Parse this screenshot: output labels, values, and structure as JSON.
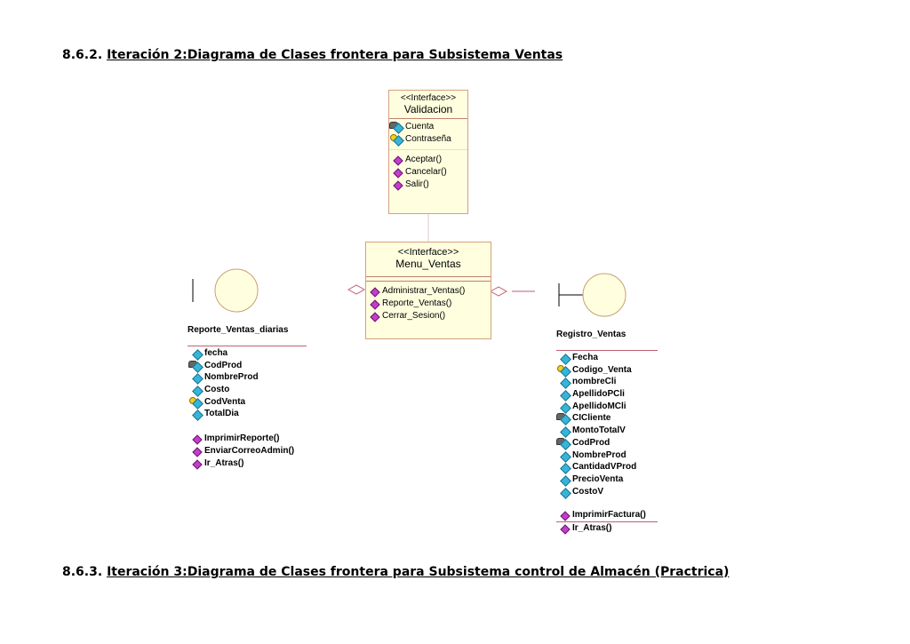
{
  "headings": [
    {
      "number": "8.6.2.",
      "title": "Iteración 2:Diagrama de Clases frontera para Subsistema Ventas"
    },
    {
      "number": "8.6.3.",
      "title": "Iteración 3:Diagrama de Clases frontera para Subsistema control de Almacén (Practrica)"
    }
  ],
  "validacion": {
    "stereotype": "<<Interface>>",
    "name": "Validacion",
    "attributes": [
      {
        "name": "Cuenta",
        "icon": "lock-attribute-icon"
      },
      {
        "name": "Contraseña",
        "icon": "key-attribute-icon"
      }
    ],
    "operations": [
      "Aceptar()",
      "Cancelar()",
      "Salir()"
    ]
  },
  "menu": {
    "stereotype": "<<Interface>>",
    "name": "Menu_Ventas",
    "operations": [
      "Administrar_Ventas()",
      "Reporte_Ventas()",
      "Cerrar_Sesion()"
    ]
  },
  "reporte": {
    "name": "Reporte_Ventas_diarias",
    "attributes": [
      {
        "name": "fecha",
        "icon": "attribute-icon"
      },
      {
        "name": "CodProd",
        "icon": "lock-attribute-icon"
      },
      {
        "name": "NombreProd",
        "icon": "attribute-icon"
      },
      {
        "name": "Costo",
        "icon": "attribute-icon"
      },
      {
        "name": "CodVenta",
        "icon": "key-attribute-icon"
      },
      {
        "name": "TotalDia",
        "icon": "attribute-icon"
      }
    ],
    "operations": [
      "ImprimirReporte()",
      "EnviarCorreoAdmin()",
      "Ir_Atras()"
    ]
  },
  "registro": {
    "name": "Registro_Ventas",
    "attributes": [
      {
        "name": "Fecha",
        "icon": "attribute-icon"
      },
      {
        "name": "Codigo_Venta",
        "icon": "key-attribute-icon"
      },
      {
        "name": "nombreCli",
        "icon": "attribute-icon"
      },
      {
        "name": "ApellidoPCli",
        "icon": "attribute-icon"
      },
      {
        "name": "ApellidoMCli",
        "icon": "attribute-icon"
      },
      {
        "name": "CICliente",
        "icon": "lock-attribute-icon"
      },
      {
        "name": "MontoTotalV",
        "icon": "attribute-icon"
      },
      {
        "name": "CodProd",
        "icon": "lock-attribute-icon"
      },
      {
        "name": "NombreProd",
        "icon": "attribute-icon"
      },
      {
        "name": "CantidadVProd",
        "icon": "attribute-icon"
      },
      {
        "name": "PrecioVenta",
        "icon": "attribute-icon"
      },
      {
        "name": "CostoV",
        "icon": "attribute-icon"
      }
    ],
    "operations": [
      "ImprimirFactura()",
      "Ir_Atras()"
    ]
  },
  "colors": {
    "class_fill": "#ffffe0",
    "class_border": "#d6a080",
    "connector": "#c06070",
    "attribute": "#35b6d8",
    "operation": "#c040c8"
  }
}
